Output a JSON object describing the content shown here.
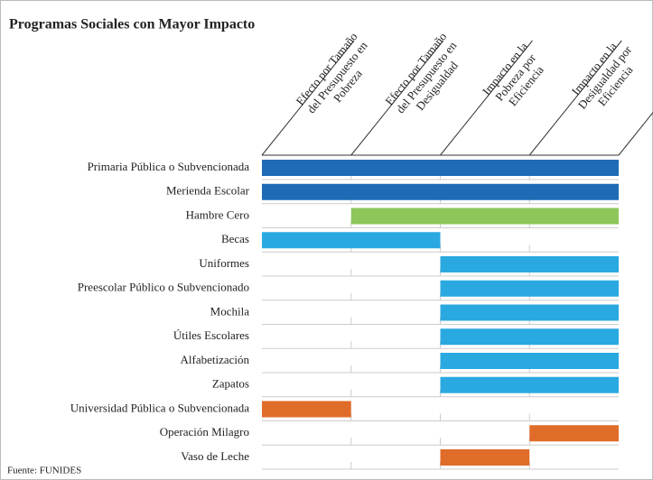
{
  "title": "Programas Sociales con Mayor Impacto",
  "columns": [
    [
      "Efecto por Tamaño",
      "del Presupuesto en",
      "Pobreza"
    ],
    [
      "Efecto por Tamaño",
      "del Presupuesto en",
      "Desigualdad"
    ],
    [
      "Impacto en la",
      "Pobreza por",
      "Eficiencia"
    ],
    [
      "Impacto en la",
      "Desigualdad por",
      "Eficiencia"
    ]
  ],
  "rows": [
    {
      "label": "Primaria Pública o Subvencionada",
      "start": 0,
      "end": 4,
      "color": "#1f6bb5"
    },
    {
      "label": "Merienda Escolar",
      "start": 0,
      "end": 4,
      "color": "#1f6bb5"
    },
    {
      "label": "Hambre Cero",
      "start": 1,
      "end": 4,
      "color": "#8dc65a"
    },
    {
      "label": "Becas",
      "start": 0,
      "end": 2,
      "color": "#2aa9e1"
    },
    {
      "label": "Uniformes",
      "start": 2,
      "end": 4,
      "color": "#2aa9e1"
    },
    {
      "label": "Preescolar Público o Subvencionado",
      "start": 2,
      "end": 4,
      "color": "#2aa9e1"
    },
    {
      "label": "Mochila",
      "start": 2,
      "end": 4,
      "color": "#2aa9e1"
    },
    {
      "label": "Útiles Escolares",
      "start": 2,
      "end": 4,
      "color": "#2aa9e1"
    },
    {
      "label": "Alfabetización",
      "start": 2,
      "end": 4,
      "color": "#2aa9e1"
    },
    {
      "label": "Zapatos",
      "start": 2,
      "end": 4,
      "color": "#2aa9e1"
    },
    {
      "label": "Universidad Pública o Subvencionada",
      "start": 0,
      "end": 1,
      "color": "#e06c2a"
    },
    {
      "label": "Operación Milagro",
      "start": 3,
      "end": 4,
      "color": "#e06c2a"
    },
    {
      "label": "Vaso de Leche",
      "start": 2,
      "end": 3,
      "color": "#e06c2a"
    }
  ],
  "source": "Fuente: FUNIDES"
}
